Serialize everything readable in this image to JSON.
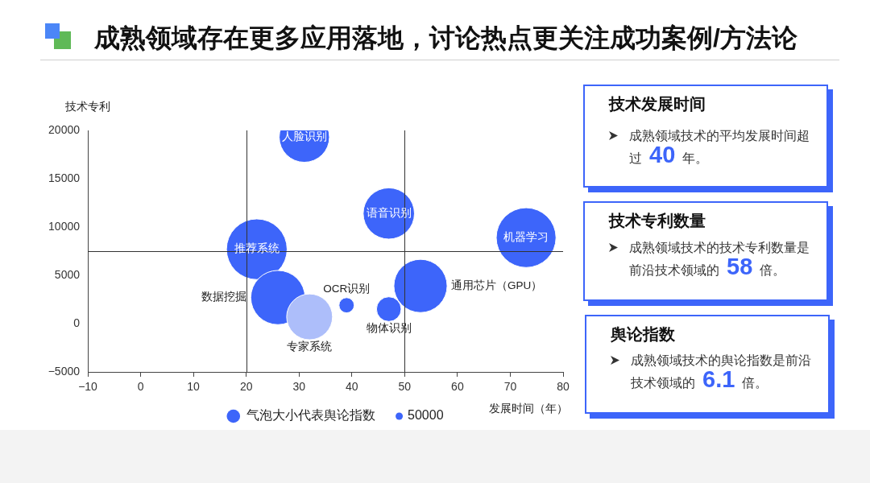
{
  "chart_data": [
    {
      "type": "bubble",
      "title": "成熟领域存在更多应用落地，讨论热点更关注成功案例/方法论",
      "xlabel": "发展时间（年）",
      "ylabel": "技术专利",
      "xlim": [
        -10,
        80
      ],
      "xticks": [
        -10,
        0,
        10,
        20,
        30,
        40,
        50,
        60,
        70,
        80
      ],
      "ylim": [
        -5000,
        20000
      ],
      "yticks": [
        -5000,
        0,
        5000,
        10000,
        15000,
        20000
      ],
      "series": [
        {
          "name": "气泡大小代表舆论指数",
          "color": "#3d65fa",
          "colors": [
            "#3d65fa",
            "#3d65fa",
            "#3d65fa",
            "#3d65fa",
            "#3d65fa",
            "#adbefa",
            "#3d65fa",
            "#3d65fa",
            "#3d65fa"
          ],
          "x": [
            31,
            47,
            73,
            22,
            26,
            32,
            53,
            47,
            39
          ],
          "values": [
            19300,
            11400,
            8900,
            7700,
            2700,
            700,
            3900,
            1500,
            1900
          ],
          "sizes": [
            2400000,
            2500000,
            3400000,
            3500000,
            2800000,
            2000000,
            2700000,
            580000,
            220000
          ]
        }
      ],
      "size_legend": [
        50000
      ],
      "legend": "bottom",
      "ref_lines": [
        {
          "axis": "x",
          "value": 20
        },
        {
          "axis": "x",
          "value": 50
        },
        {
          "axis": "y",
          "value": 7500
        }
      ],
      "annotations": [
        {
          "text": "人脸识别",
          "x": 31,
          "y": 19300
        },
        {
          "text": "语音识别",
          "x": 47,
          "y": 11400
        },
        {
          "text": "机器学习",
          "x": 73,
          "y": 8900
        },
        {
          "text": "推荐系统",
          "x": 22,
          "y": 7700
        },
        {
          "text": "数据挖掘",
          "x": 26,
          "y": 2700
        },
        {
          "text": "专家系统",
          "x": 32,
          "y": 700
        },
        {
          "text": "通用芯片（GPU）",
          "x": 53,
          "y": 3900
        },
        {
          "text": "物体识别",
          "x": 47,
          "y": 1500
        },
        {
          "text": "OCR识别",
          "x": 39,
          "y": 1900
        }
      ]
    },
    {
      "type": "other",
      "title": "技术发展时间",
      "annotations": [
        "成熟领域技术的平均发展时间超",
        "过",
        "40",
        "年。"
      ]
    },
    {
      "type": "other",
      "title": "技术专利数量",
      "annotations": [
        "成熟领域技术的技术专利数量是",
        "前沿技术领域的",
        "58",
        "倍。"
      ]
    },
    {
      "type": "other",
      "title": "舆论指数",
      "annotations": [
        "成熟领域技术的舆论指数是前沿",
        "技术领域的",
        "6.1",
        "倍。"
      ]
    }
  ]
}
